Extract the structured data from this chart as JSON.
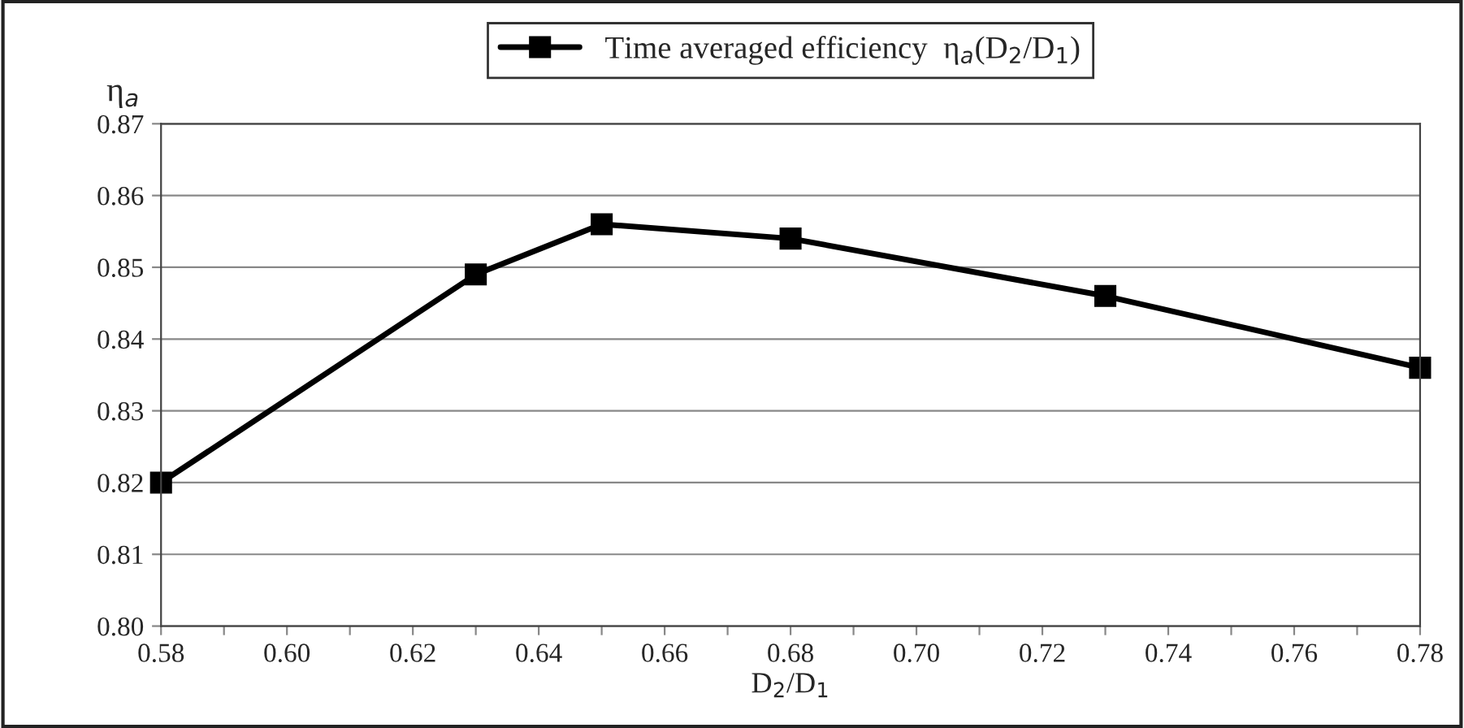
{
  "chart_data": {
    "type": "line",
    "xlabel": "D$_{2}$/D$_{1}$",
    "ylabel": "η$_{a}$",
    "x": [
      0.58,
      0.63,
      0.65,
      0.68,
      0.73,
      0.78
    ],
    "series": [
      {
        "name": "Time averaged efficiency  η$_{a}$(D$_{2}$/D$_{1}$)",
        "color": "#000000",
        "values": [
          0.82,
          0.849,
          0.856,
          0.854,
          0.846,
          0.836
        ]
      }
    ],
    "xlim": [
      0.58,
      0.78
    ],
    "xticks": [
      0.58,
      {
        "value": 0.59,
        "label": null
      },
      "0.60",
      {
        "value": 0.61,
        "label": null
      },
      0.62,
      {
        "value": 0.63,
        "label": null
      },
      0.64,
      {
        "value": 0.65,
        "label": null
      },
      0.66,
      {
        "value": 0.67,
        "label": null
      },
      0.68,
      {
        "value": 0.69,
        "label": null
      },
      "0.70",
      {
        "value": 0.71,
        "label": null
      },
      0.72,
      {
        "value": 0.73,
        "label": null
      },
      0.74,
      {
        "value": 0.75,
        "label": null
      },
      0.76,
      {
        "value": 0.77,
        "label": null
      },
      0.78
    ],
    "ylim": [
      0.8,
      0.87
    ],
    "yticks": [
      {
        "value": 0.8,
        "label": "0.80"
      },
      0.81,
      0.82,
      0.83,
      0.84,
      0.85,
      0.86,
      0.87
    ],
    "grid": "y",
    "legend": "top",
    "marker": "square",
    "line_style": "solid"
  }
}
